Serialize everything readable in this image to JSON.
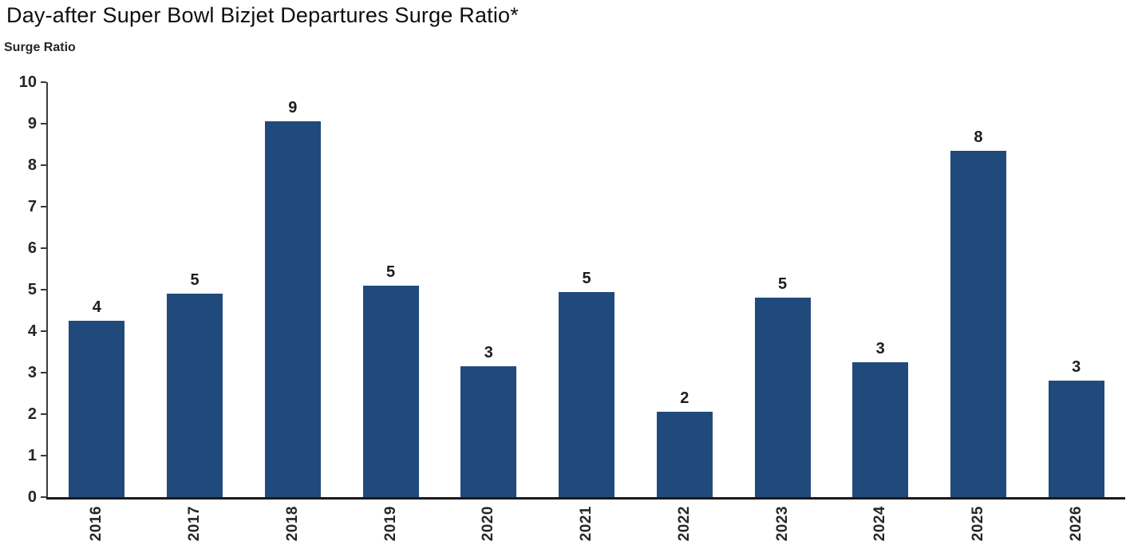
{
  "chart_data": {
    "type": "bar",
    "title": "Day-after Super Bowl Bizjet Departures Surge Ratio*",
    "ylabel": "Surge Ratio",
    "xlabel": "",
    "categories": [
      "2016",
      "2017",
      "2018",
      "2019",
      "2020",
      "2021",
      "2022",
      "2023",
      "2024",
      "2025",
      "2026"
    ],
    "values": [
      4.25,
      4.9,
      9.05,
      5.1,
      3.15,
      4.95,
      2.05,
      4.8,
      3.25,
      8.35,
      2.8
    ],
    "bar_labels": [
      "4",
      "5",
      "9",
      "5",
      "3",
      "5",
      "2",
      "5",
      "3",
      "8",
      "3"
    ],
    "ylim": [
      0,
      10
    ],
    "ytick_step": 1,
    "grid": false,
    "legend": false,
    "bar_color": "#204A7C",
    "axis_color": "#3a3a3a",
    "baseline_color": "#1a1a1a",
    "text_color": "#262626",
    "background_color": "#ffffff"
  }
}
